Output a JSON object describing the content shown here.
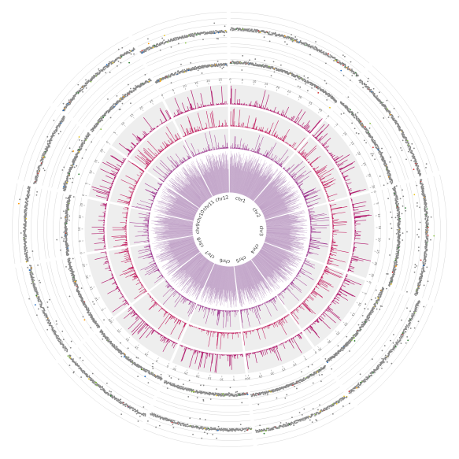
{
  "chart_data": {
    "type": "circos",
    "title": "",
    "chromosomes": [
      {
        "name": "chr1",
        "length": 43
      },
      {
        "name": "chr2",
        "length": 36
      },
      {
        "name": "chr3",
        "length": 37
      },
      {
        "name": "chr4",
        "length": 36
      },
      {
        "name": "chr5",
        "length": 30
      },
      {
        "name": "chr6",
        "length": 32
      },
      {
        "name": "chr7",
        "length": 30
      },
      {
        "name": "chr8",
        "length": 29
      },
      {
        "name": "chr9",
        "length": 23
      },
      {
        "name": "chr10",
        "length": 23
      },
      {
        "name": "chr11",
        "length": 29
      },
      {
        "name": "chr12",
        "length": 28
      }
    ],
    "tick_interval": 5,
    "tracks": [
      {
        "kind": "histogram",
        "color": "#c0a2c7",
        "background": "#ffffff"
      },
      {
        "kind": "histogram",
        "color": "#9b2e8c",
        "background": "#eeeeee"
      },
      {
        "kind": "histogram",
        "color": "#c2185b",
        "background": "#eeeeee"
      },
      {
        "kind": "histogram",
        "color": "#b0156a",
        "background": "#eeeeee"
      },
      {
        "kind": "scatter",
        "color": "#888888"
      },
      {
        "kind": "scatter",
        "color": "#888888"
      }
    ],
    "highlight_colors": [
      "#e8c51e",
      "#2e7d32",
      "#d32f2f",
      "#1565c0",
      "#8bc34a",
      "#ff9800"
    ],
    "grid": true
  }
}
